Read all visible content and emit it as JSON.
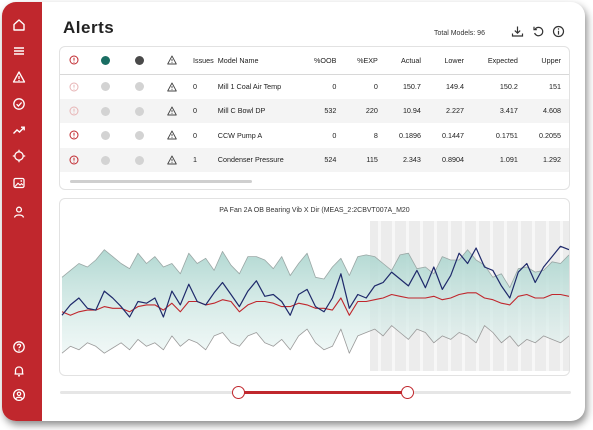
{
  "app": {
    "title": "Alerts",
    "total_models": "Total Models: 96",
    "brand_color": "#c0272d"
  },
  "sidebar": {
    "items": [
      {
        "icon": "home-icon"
      },
      {
        "icon": "menu-icon"
      },
      {
        "icon": "warning-icon"
      },
      {
        "icon": "check-circle-icon"
      },
      {
        "icon": "trend-icon"
      },
      {
        "icon": "target-icon"
      },
      {
        "icon": "image-icon"
      },
      {
        "icon": "user-icon"
      }
    ],
    "bottom_items": [
      {
        "icon": "help-icon"
      },
      {
        "icon": "bell-icon"
      },
      {
        "icon": "account-icon"
      }
    ]
  },
  "toolbar": {
    "icons": [
      "download-icon",
      "refresh-icon",
      "info-icon"
    ]
  },
  "table": {
    "headers": [
      "Issues",
      "Model Name",
      "%OOB",
      "%EXP",
      "Actual",
      "Lower",
      "Expected",
      "Upper"
    ],
    "header_dot_colors": [
      "#1a6e63",
      "#4a4a4a"
    ],
    "rows": [
      {
        "issues": "0",
        "model": "Mill 1 Coal Air Temp",
        "oob": "0",
        "exp": "0",
        "actual": "150.7",
        "lower": "149.4",
        "expected": "150.2",
        "upper": "151",
        "alert_muted": true
      },
      {
        "issues": "0",
        "model": "Mill C Bowl DP",
        "oob": "532",
        "exp": "220",
        "actual": "10.94",
        "lower": "2.227",
        "expected": "3.417",
        "upper": "4.608",
        "alert_muted": true
      },
      {
        "issues": "0",
        "model": "CCW Pump A",
        "oob": "0",
        "exp": "8",
        "actual": "0.1896",
        "lower": "0.1447",
        "expected": "0.1751",
        "upper": "0.2055",
        "alert_muted": false
      },
      {
        "issues": "1",
        "model": "Condenser Pressure",
        "oob": "524",
        "exp": "115",
        "actual": "2.343",
        "lower": "0.8904",
        "expected": "1.091",
        "upper": "1.292",
        "alert_muted": false
      }
    ]
  },
  "chart": {
    "title": "PA Fan 2A OB Bearing Vib X Dir (MEAS_2:2CBVT007A_M20"
  },
  "chart_data": {
    "type": "line",
    "title": "PA Fan 2A OB Bearing Vib X Dir (MEAS_2:2CBVT007A_M20",
    "x": [
      0,
      1,
      2,
      3,
      4,
      5,
      6,
      7,
      8,
      9,
      10,
      11,
      12,
      13,
      14,
      15,
      16,
      17,
      18,
      19,
      20,
      21,
      22,
      23,
      24,
      25,
      26,
      27,
      28,
      29,
      30,
      31,
      32,
      33,
      34,
      35,
      36,
      37,
      38,
      39,
      40,
      41,
      42,
      43,
      44,
      45,
      46,
      47,
      48,
      49,
      50,
      51,
      52,
      53,
      54,
      55,
      56,
      57,
      58,
      59,
      60
    ],
    "series": [
      {
        "key": "actual",
        "color": "#1f2a6b",
        "values": [
          30,
          36,
          40,
          34,
          33,
          44,
          40,
          35,
          29,
          38,
          37,
          40,
          29,
          44,
          36,
          48,
          38,
          36,
          43,
          49,
          42,
          35,
          44,
          50,
          41,
          42,
          38,
          30,
          42,
          45,
          35,
          32,
          40,
          54,
          34,
          42,
          40,
          47,
          49,
          55,
          51,
          47,
          56,
          46,
          58,
          45,
          53,
          66,
          60,
          69,
          58,
          56,
          47,
          40,
          55,
          60,
          49,
          58,
          64,
          70,
          68
        ]
      },
      {
        "key": "expected",
        "color": "#c0272d",
        "values": [
          32,
          30,
          32,
          33,
          33,
          35,
          34,
          34,
          32,
          35,
          36,
          36,
          33,
          37,
          32,
          38,
          38,
          36,
          37,
          39,
          38,
          32,
          36,
          38,
          38,
          37,
          35,
          35,
          37,
          36,
          34,
          34,
          33,
          40,
          30,
          38,
          38,
          39,
          40,
          42,
          41,
          40,
          40,
          40,
          41,
          39,
          40,
          42,
          43,
          43,
          40,
          39,
          37,
          36,
          41,
          42,
          40,
          40,
          42,
          42,
          41
        ]
      },
      {
        "key": "upper",
        "color": "#9aa7a5",
        "values": [
          52,
          56,
          60,
          58,
          62,
          68,
          64,
          60,
          57,
          66,
          60,
          64,
          58,
          60,
          54,
          66,
          60,
          63,
          56,
          67,
          59,
          54,
          64,
          64,
          62,
          57,
          64,
          53,
          60,
          66,
          52,
          51,
          58,
          63,
          53,
          64,
          65,
          64,
          60,
          56,
          65,
          66,
          57,
          58,
          54,
          64,
          62,
          62,
          68,
          62,
          59,
          52,
          54,
          46,
          57,
          58,
          55,
          56,
          61,
          60,
          65
        ]
      },
      {
        "key": "lower",
        "color": "#9a9a9a",
        "values": [
          8,
          12,
          10,
          14,
          12,
          8,
          11,
          14,
          10,
          16,
          12,
          14,
          10,
          18,
          12,
          16,
          14,
          10,
          18,
          20,
          14,
          12,
          18,
          20,
          14,
          12,
          16,
          10,
          18,
          22,
          14,
          10,
          12,
          22,
          8,
          18,
          20,
          22,
          18,
          24,
          20,
          16,
          22,
          20,
          14,
          18,
          16,
          20,
          18,
          14,
          24,
          20,
          14,
          18,
          12,
          16,
          14,
          18,
          16,
          14,
          18
        ]
      }
    ],
    "ylim": [
      0,
      80
    ]
  },
  "slider": {
    "start": 0.27,
    "end": 0.6
  }
}
